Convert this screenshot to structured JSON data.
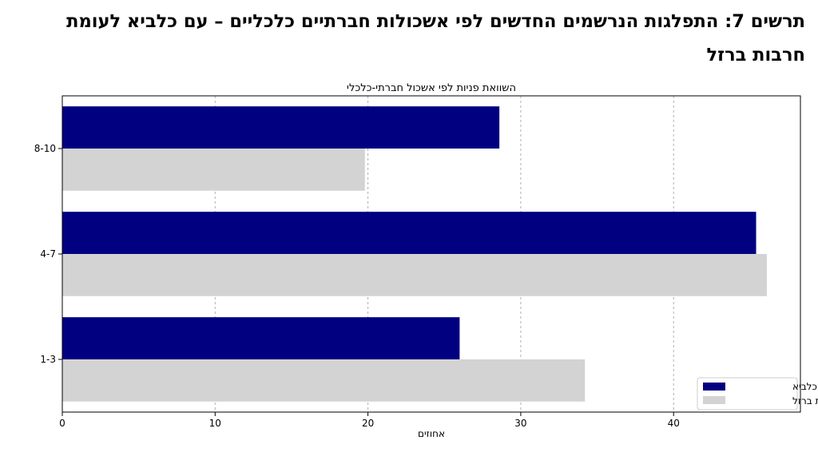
{
  "document": {
    "heading": "תרשים 7: התפלגות הנרשמים החדשים לפי אשכולות חברתיים כלכליים – עם כלביא לעומת חרבות ברזל"
  },
  "colors": {
    "series_dark": "#000080",
    "series_light": "#d3d3d3",
    "grid": "#b0b0b0"
  },
  "chart_data": {
    "type": "bar",
    "orientation": "horizontal",
    "title": "השוואת פניות לפי אשכול חברתי-כלכלי",
    "xlabel": "אחוזים",
    "ylabel": "",
    "categories": [
      "1-3",
      "4-7",
      "8-10"
    ],
    "series": [
      {
        "name": "עם כלביא",
        "color": "#000080",
        "values": [
          26,
          45.4,
          28.6
        ]
      },
      {
        "name": "חרבות ברזל",
        "color": "#d3d3d3",
        "values": [
          34.2,
          46.1,
          19.8
        ]
      }
    ],
    "xlim": [
      0,
      48.3
    ],
    "xticks": [
      0,
      10,
      20,
      30,
      40
    ],
    "grid": "vertical dashed",
    "legend_position": "bottom-right"
  }
}
